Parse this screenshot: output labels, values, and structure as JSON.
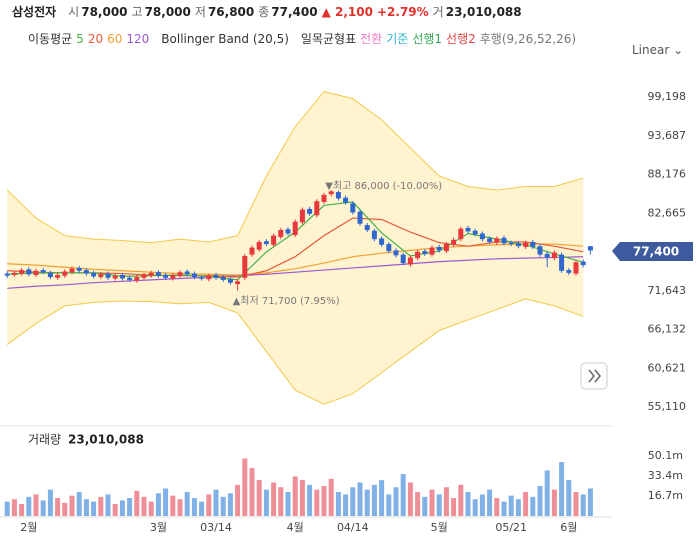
{
  "header": {
    "name": "삼성전자",
    "quotes": [
      {
        "label": "시",
        "value": "78,000"
      },
      {
        "label": "고",
        "value": "78,000"
      },
      {
        "label": "저",
        "value": "76,800"
      },
      {
        "label": "종",
        "value": "77,400"
      }
    ],
    "change": "▲ 2,100",
    "change_pct": "+2.79%",
    "volume_label": "거",
    "volume": "23,010,088"
  },
  "legend": {
    "ma_title": "이동평균",
    "ichimoku_title": "일목균형표",
    "ichimoku": [
      {
        "name": "전환",
        "color": "#f07ec6"
      },
      {
        "name": "기준",
        "color": "#2bb3c9"
      },
      {
        "name": "선행1",
        "color": "#35a853"
      },
      {
        "name": "선행2",
        "color": "#e04444"
      },
      {
        "name": "후행(9,26,52,26)",
        "color": "#777777"
      }
    ]
  },
  "scale_menu": "Linear",
  "chart_data": {
    "type": "candlestick",
    "ylim": [
      53260,
      100940
    ],
    "yticks": [
      {
        "value": 55110,
        "label": "55,110"
      },
      {
        "value": 60621,
        "label": "60,621"
      },
      {
        "value": 66132,
        "label": "66,132"
      },
      {
        "value": 71643,
        "label": "71,643"
      },
      {
        "value": 82665,
        "label": "82,665"
      },
      {
        "value": 88176,
        "label": "88,176"
      },
      {
        "value": 93687,
        "label": "93,687"
      },
      {
        "value": 99198,
        "label": "99,198"
      }
    ],
    "xlim": [
      -1,
      84
    ],
    "xticks": [
      {
        "value": 3,
        "label": "2월"
      },
      {
        "value": 21,
        "label": "3월"
      },
      {
        "value": 29,
        "label": "03/14"
      },
      {
        "value": 40,
        "label": "4월"
      },
      {
        "value": 48,
        "label": "04/14"
      },
      {
        "value": 60,
        "label": "5월"
      },
      {
        "value": 70,
        "label": "05/21"
      },
      {
        "value": 78,
        "label": "6월"
      }
    ],
    "up_color": "#e8383d",
    "down_color": "#2f67cf",
    "candles": {
      "open": [
        74100,
        73900,
        74100,
        74700,
        73900,
        74600,
        74200,
        73500,
        73800,
        74300,
        74900,
        74600,
        74200,
        73600,
        74100,
        73400,
        73900,
        73500,
        73100,
        73500,
        73800,
        74300,
        73900,
        73400,
        73800,
        74400,
        74100,
        73500,
        73300,
        73900,
        73600,
        73300,
        72600,
        73500,
        76800,
        77500,
        78700,
        78200,
        79300,
        80400,
        79600,
        81400,
        83300,
        82400,
        84300,
        85400,
        85700,
        84900,
        84100,
        82900,
        81000,
        80200,
        79100,
        78300,
        77400,
        76800,
        75400,
        76300,
        77300,
        76800,
        77900,
        77300,
        78200,
        79000,
        80600,
        80200,
        79800,
        79100,
        78500,
        79200,
        78500,
        78400,
        77900,
        78600,
        78000,
        76900,
        76300,
        76800,
        74600,
        74100,
        75800,
        78000
      ],
      "high": [
        74400,
        74500,
        74900,
        75000,
        74800,
        74900,
        74500,
        74200,
        74700,
        75100,
        75200,
        74900,
        74500,
        74300,
        74400,
        74100,
        74200,
        73800,
        73900,
        74200,
        74500,
        74600,
        74200,
        74200,
        74600,
        74700,
        74400,
        73800,
        74100,
        74200,
        73900,
        73600,
        73300,
        76900,
        78100,
        78900,
        79000,
        79800,
        80600,
        80700,
        81800,
        83500,
        83600,
        84700,
        85600,
        86000,
        85900,
        85200,
        84400,
        83200,
        81300,
        80500,
        79400,
        78600,
        77700,
        77100,
        76700,
        77500,
        77600,
        78100,
        78200,
        78600,
        79200,
        80800,
        80900,
        80500,
        80100,
        79400,
        79400,
        79500,
        78800,
        78700,
        78800,
        78900,
        78300,
        77200,
        77400,
        77100,
        74900,
        76000,
        76100,
        78000
      ],
      "low": [
        73500,
        73600,
        73800,
        73700,
        73600,
        74000,
        73300,
        73200,
        73500,
        74000,
        74200,
        73800,
        73400,
        73300,
        73200,
        73100,
        73100,
        72900,
        72800,
        73200,
        73500,
        73500,
        73200,
        73100,
        73500,
        73700,
        73300,
        73100,
        73000,
        73200,
        72900,
        72500,
        71700,
        73200,
        76500,
        77200,
        78000,
        77900,
        79000,
        79500,
        79300,
        81100,
        82300,
        82100,
        84000,
        85100,
        84500,
        83900,
        82500,
        80900,
        80000,
        78700,
        77900,
        77000,
        76400,
        75300,
        75100,
        76000,
        76600,
        76500,
        77100,
        77000,
        77900,
        78700,
        79800,
        79400,
        78700,
        78300,
        78200,
        78100,
        78000,
        77700,
        77600,
        77600,
        76500,
        75000,
        76000,
        74200,
        73900,
        73800,
        75000,
        76800
      ],
      "close": [
        73800,
        74200,
        74600,
        74000,
        74500,
        74300,
        73600,
        73900,
        74400,
        74800,
        74500,
        74100,
        73700,
        74000,
        73500,
        73800,
        73400,
        73200,
        73600,
        73900,
        74200,
        73800,
        73500,
        73900,
        74300,
        74000,
        73600,
        73400,
        73800,
        73500,
        73200,
        72800,
        73000,
        76600,
        77800,
        78600,
        78300,
        79500,
        80300,
        79800,
        81500,
        83200,
        82600,
        84400,
        85300,
        85800,
        84800,
        84200,
        82800,
        81200,
        80300,
        79000,
        78200,
        77300,
        76700,
        75600,
        76400,
        77200,
        76900,
        77800,
        77400,
        78300,
        78900,
        80500,
        80100,
        79700,
        79000,
        78600,
        79100,
        78400,
        78300,
        78000,
        78500,
        77900,
        76800,
        76400,
        77100,
        74500,
        74200,
        75700,
        75300,
        77400
      ]
    },
    "line_x": [
      0,
      4,
      8,
      12,
      16,
      20,
      24,
      28,
      32,
      36,
      40,
      44,
      48,
      52,
      56,
      60,
      64,
      68,
      72,
      76,
      80
    ],
    "band": {
      "name": "Bollinger Band (20,5)",
      "color": "#f2c94c",
      "fill": "#fff4cf",
      "upper": [
        86000,
        82000,
        79500,
        79000,
        78800,
        78500,
        79000,
        78600,
        79500,
        88000,
        95000,
        100000,
        99000,
        96000,
        92000,
        88000,
        86500,
        86000,
        86500,
        86500,
        87700
      ],
      "lower": [
        64000,
        67000,
        69500,
        70000,
        70200,
        70100,
        69800,
        70000,
        68500,
        63000,
        57500,
        55500,
        57000,
        60000,
        63000,
        66000,
        67500,
        69000,
        70500,
        69500,
        68000
      ]
    },
    "lines": [
      {
        "name": "120",
        "color": "#9b59d0",
        "values": [
          72000,
          72300,
          72500,
          72800,
          73000,
          73200,
          73400,
          73600,
          73800,
          74000,
          74300,
          74600,
          74900,
          75200,
          75500,
          75800,
          76000,
          76200,
          76300,
          76400,
          76500
        ]
      },
      {
        "name": "60",
        "color": "#f0a030",
        "values": [
          75500,
          75300,
          75000,
          74700,
          74500,
          74300,
          74100,
          74000,
          73900,
          74200,
          74800,
          75600,
          76500,
          77000,
          77400,
          77800,
          78000,
          78200,
          78300,
          78300,
          78000
        ]
      },
      {
        "name": "20",
        "color": "#e8583a",
        "values": [
          74500,
          74300,
          74200,
          74200,
          74100,
          73900,
          73800,
          73800,
          73600,
          74500,
          76500,
          79500,
          82000,
          81800,
          80000,
          78500,
          78000,
          78600,
          78600,
          78000,
          77200
        ]
      },
      {
        "name": "5",
        "color": "#44b04a",
        "values": [
          74000,
          74200,
          74200,
          74200,
          73700,
          73800,
          73900,
          73700,
          73200,
          77200,
          80000,
          83800,
          84300,
          79900,
          76600,
          77300,
          79800,
          79000,
          78200,
          76900,
          75700
        ]
      }
    ],
    "annotations": {
      "high": {
        "text": "▼최고 86,000 (-10.00%)",
        "index": 45
      },
      "low": {
        "text": "▲최저 71,700 (7.95%)",
        "index": 32
      }
    },
    "volume": {
      "title": "거래량",
      "total": "23,010,088",
      "up_color": "#ee8f98",
      "down_color": "#7fb0e6",
      "ylim": [
        0,
        71.8
      ],
      "yticks": [
        {
          "value": 16.7,
          "label": "16.7m"
        },
        {
          "value": 33.4,
          "label": "33.4m"
        },
        {
          "value": 50.1,
          "label": "50.1m"
        }
      ],
      "values": [
        12,
        14,
        10,
        16,
        18,
        13,
        22,
        15,
        11,
        17,
        20,
        14,
        12,
        16,
        18,
        10,
        13,
        15,
        21,
        16,
        12,
        19,
        23,
        17,
        14,
        20,
        15,
        12,
        18,
        22,
        16,
        19,
        26,
        48,
        40,
        30,
        22,
        28,
        24,
        20,
        33,
        30,
        26,
        22,
        25,
        31,
        20,
        18,
        24,
        28,
        22,
        26,
        30,
        18,
        24,
        35,
        28,
        20,
        16,
        22,
        18,
        24,
        15,
        26,
        20,
        14,
        18,
        22,
        15,
        12,
        17,
        14,
        20,
        16,
        25,
        38,
        22,
        45,
        30,
        20,
        18,
        23.01
      ]
    }
  }
}
